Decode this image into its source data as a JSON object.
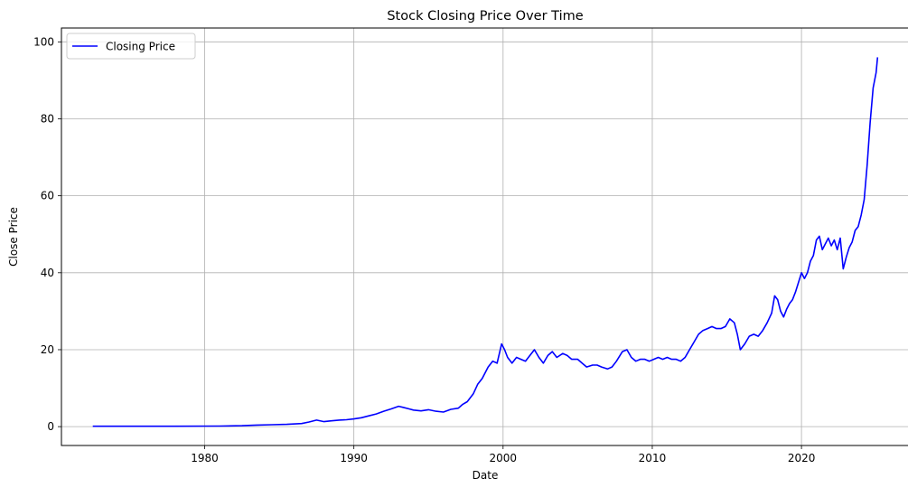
{
  "chart_data": {
    "type": "line",
    "title": "Stock Closing Price Over Time",
    "xlabel": "Date",
    "ylabel": "Close Price",
    "x_ticks": [
      1980,
      1990,
      2000,
      2010,
      2020
    ],
    "y_ticks": [
      0,
      20,
      40,
      60,
      80,
      100
    ],
    "xlim": [
      1970.4,
      2027.2
    ],
    "ylim": [
      -4.9,
      103.6
    ],
    "grid": true,
    "legend": {
      "position": "top-left",
      "entries": [
        "Closing Price"
      ]
    },
    "series": [
      {
        "name": "Closing Price",
        "color": "#0000ff",
        "x": [
          1972.5,
          1975.0,
          1978.0,
          1981.0,
          1982.5,
          1983.5,
          1984.5,
          1985.5,
          1986.5,
          1987.0,
          1987.5,
          1988.0,
          1988.5,
          1989.0,
          1989.5,
          1990.0,
          1990.5,
          1991.0,
          1991.5,
          1992.0,
          1992.5,
          1993.0,
          1993.3,
          1993.7,
          1994.0,
          1994.5,
          1995.0,
          1995.5,
          1996.0,
          1996.5,
          1997.0,
          1997.3,
          1997.6,
          1998.0,
          1998.3,
          1998.6,
          1999.0,
          1999.3,
          1999.6,
          1999.9,
          2000.1,
          2000.3,
          2000.6,
          2000.9,
          2001.2,
          2001.5,
          2001.8,
          2002.1,
          2002.4,
          2002.7,
          2003.0,
          2003.3,
          2003.6,
          2004.0,
          2004.3,
          2004.6,
          2005.0,
          2005.3,
          2005.6,
          2006.0,
          2006.3,
          2006.6,
          2007.0,
          2007.3,
          2007.6,
          2008.0,
          2008.3,
          2008.6,
          2008.9,
          2009.2,
          2009.5,
          2009.8,
          2010.1,
          2010.4,
          2010.7,
          2011.0,
          2011.3,
          2011.6,
          2011.9,
          2012.2,
          2012.5,
          2012.8,
          2013.1,
          2013.4,
          2013.7,
          2014.0,
          2014.3,
          2014.6,
          2014.9,
          2015.2,
          2015.5,
          2015.7,
          2015.9,
          2016.2,
          2016.5,
          2016.8,
          2017.1,
          2017.4,
          2017.7,
          2018.0,
          2018.2,
          2018.4,
          2018.6,
          2018.8,
          2019.0,
          2019.2,
          2019.4,
          2019.6,
          2019.8,
          2020.0,
          2020.2,
          2020.4,
          2020.6,
          2020.8,
          2021.0,
          2021.2,
          2021.4,
          2021.6,
          2021.8,
          2022.0,
          2022.2,
          2022.4,
          2022.6,
          2022.8,
          2023.0,
          2023.2,
          2023.4,
          2023.6,
          2023.8,
          2024.0,
          2024.2,
          2024.4,
          2024.6,
          2024.8,
          2025.0,
          2025.1
        ],
        "y": [
          0.1,
          0.1,
          0.1,
          0.15,
          0.25,
          0.4,
          0.5,
          0.6,
          0.8,
          1.2,
          1.7,
          1.3,
          1.5,
          1.7,
          1.8,
          2.0,
          2.3,
          2.8,
          3.3,
          4.0,
          4.6,
          5.3,
          5.0,
          4.6,
          4.3,
          4.1,
          4.4,
          4.0,
          3.8,
          4.5,
          4.8,
          5.8,
          6.5,
          8.5,
          11.0,
          12.5,
          15.5,
          17.0,
          16.5,
          21.5,
          20.0,
          18.0,
          16.5,
          18.0,
          17.5,
          17.0,
          18.5,
          20.0,
          18.0,
          16.5,
          18.5,
          19.5,
          18.0,
          19.0,
          18.5,
          17.5,
          17.5,
          16.5,
          15.5,
          16.0,
          16.0,
          15.5,
          15.0,
          15.5,
          17.0,
          19.5,
          20.0,
          18.0,
          17.0,
          17.5,
          17.5,
          17.0,
          17.5,
          18.0,
          17.5,
          18.0,
          17.5,
          17.5,
          17.0,
          18.0,
          20.0,
          22.0,
          24.0,
          25.0,
          25.5,
          26.0,
          25.5,
          25.5,
          26.0,
          28.0,
          27.0,
          24.0,
          20.0,
          21.5,
          23.5,
          24.0,
          23.5,
          25.0,
          27.0,
          29.5,
          34.0,
          33.0,
          30.0,
          28.5,
          30.5,
          32.0,
          33.0,
          35.0,
          37.5,
          40.0,
          38.5,
          40.0,
          43.0,
          44.5,
          48.5,
          49.5,
          46.0,
          47.5,
          49.0,
          47.0,
          48.5,
          46.0,
          49.0,
          41.0,
          44.0,
          46.5,
          48.0,
          51.0,
          52.0,
          55.0,
          59.0,
          68.0,
          79.0,
          88.0,
          92.0,
          96.0
        ]
      }
    ]
  }
}
